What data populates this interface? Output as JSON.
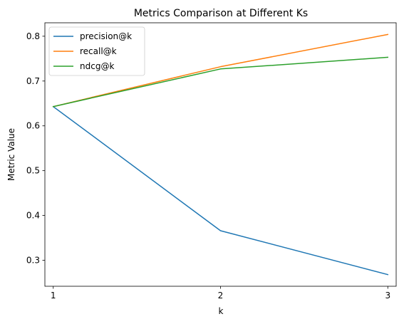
{
  "chart_data": {
    "type": "line",
    "title": "Metrics Comparison at Different Ks",
    "xlabel": "k",
    "ylabel": "Metric Value",
    "x": [
      1,
      2,
      3
    ],
    "xticks": [
      "1",
      "2",
      "3"
    ],
    "xlim": [
      0.95,
      3.05
    ],
    "ylim": [
      0.242,
      0.83
    ],
    "yticks": [
      0.3,
      0.4,
      0.5,
      0.6,
      0.7,
      0.8
    ],
    "ytick_labels": [
      "0.3",
      "0.4",
      "0.5",
      "0.6",
      "0.7",
      "0.8"
    ],
    "grid": false,
    "legend": "top-left",
    "series": [
      {
        "name": "precision@k",
        "color": "#1f77b4",
        "values": [
          0.643,
          0.366,
          0.268
        ]
      },
      {
        "name": "recall@k",
        "color": "#ff7f0e",
        "values": [
          0.643,
          0.732,
          0.804
        ]
      },
      {
        "name": "ndcg@k",
        "color": "#2ca02c",
        "values": [
          0.643,
          0.727,
          0.753
        ]
      }
    ]
  }
}
